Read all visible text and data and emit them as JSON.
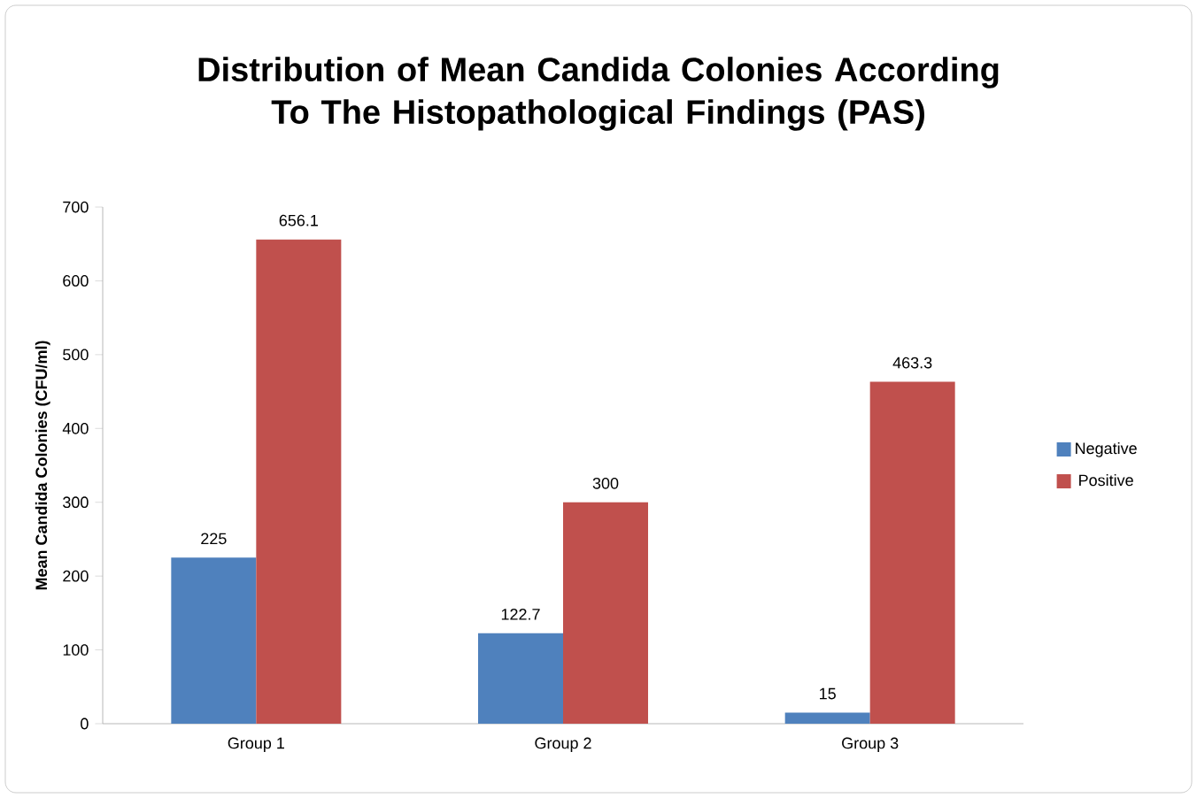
{
  "chart_data": {
    "type": "bar",
    "title": "Distribution of Mean Candida Colonies According To The Histopathological Findings (PAS)",
    "ylabel": "Mean Candida Colonies (CFU/ml)",
    "categories": [
      "Group 1",
      "Group 2",
      "Group 3"
    ],
    "series": [
      {
        "name": "Negative",
        "color": "#4f81bd",
        "values": [
          225,
          122.7,
          15
        ]
      },
      {
        "name": "Positive",
        "color": "#c0504d",
        "values": [
          656.1,
          300,
          463.3
        ]
      }
    ],
    "ylim": [
      0,
      700
    ],
    "yticks": [
      0,
      100,
      200,
      300,
      400,
      500,
      600,
      700
    ],
    "data_labels": true,
    "legend": "right",
    "grid": false
  }
}
